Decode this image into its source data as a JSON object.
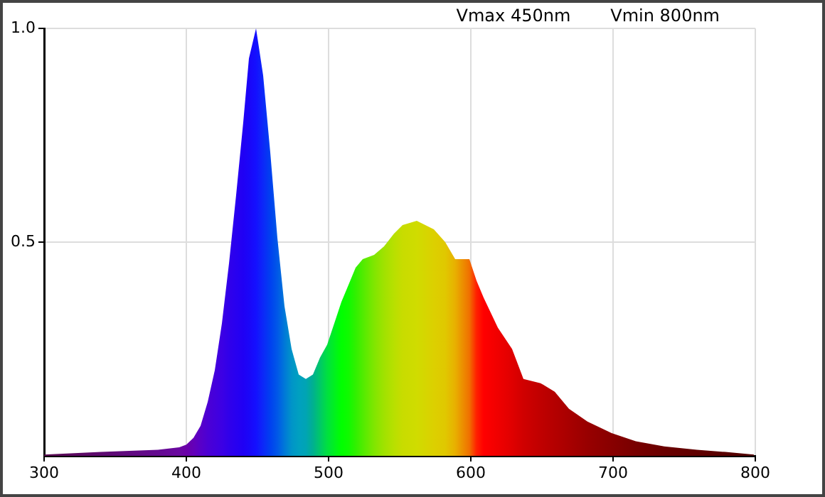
{
  "chart_data": {
    "type": "area",
    "annotations": [
      "Vmax 450nm",
      "Vmin 800nm"
    ],
    "x": [
      300,
      340,
      380,
      395,
      400,
      405,
      410,
      415,
      420,
      425,
      430,
      435,
      440,
      444,
      449,
      454,
      459,
      464,
      469,
      474,
      479,
      484,
      489,
      494,
      499,
      504,
      509,
      514,
      519,
      524,
      532,
      539,
      546,
      552,
      562,
      574,
      582,
      589,
      599,
      604,
      609,
      619,
      629,
      637,
      649,
      659,
      669,
      682,
      699,
      716,
      736,
      759,
      779,
      799
    ],
    "values": [
      0.003,
      0.009,
      0.014,
      0.02,
      0.026,
      0.042,
      0.07,
      0.126,
      0.2,
      0.31,
      0.45,
      0.61,
      0.78,
      0.93,
      1.0,
      0.89,
      0.71,
      0.51,
      0.35,
      0.25,
      0.19,
      0.18,
      0.19,
      0.23,
      0.26,
      0.31,
      0.36,
      0.4,
      0.44,
      0.46,
      0.47,
      0.49,
      0.52,
      0.54,
      0.55,
      0.53,
      0.5,
      0.46,
      0.46,
      0.41,
      0.37,
      0.3,
      0.25,
      0.18,
      0.17,
      0.15,
      0.11,
      0.08,
      0.053,
      0.034,
      0.022,
      0.014,
      0.009,
      0.003
    ],
    "colors": [
      "#5a0a50",
      "#5e0a70",
      "#640a90",
      "#6a08a0",
      "#6a00a8",
      "#6400b8",
      "#5800c8",
      "#4c00d4",
      "#4400dc",
      "#3c00e4",
      "#3000ea",
      "#2800f0",
      "#2000f4",
      "#1a06f8",
      "#1410ff",
      "#0c28f8",
      "#0040f0",
      "#0058e8",
      "#0078d8",
      "#0094c8",
      "#00a0c0",
      "#00a4b4",
      "#00b090",
      "#00c868",
      "#00e040",
      "#00f020",
      "#00ff00",
      "#10fa00",
      "#30f000",
      "#50ec00",
      "#80e600",
      "#a0e200",
      "#b8e000",
      "#c8dc00",
      "#d0dc00",
      "#dcd000",
      "#e0c800",
      "#e8b000",
      "#f07000",
      "#ff2000",
      "#ff0000",
      "#f00000",
      "#e00000",
      "#d00000",
      "#c00000",
      "#b40000",
      "#a80000",
      "#980000",
      "#880000",
      "#780000",
      "#6a0000",
      "#600000",
      "#580000",
      "#500000"
    ],
    "xlim": [
      300,
      800
    ],
    "ylim": [
      0,
      1
    ],
    "xticks": [
      300,
      400,
      500,
      600,
      700,
      800
    ],
    "yticks": [
      0.5,
      {
        "value": 1,
        "label": "1.0"
      }
    ],
    "grid": true
  }
}
